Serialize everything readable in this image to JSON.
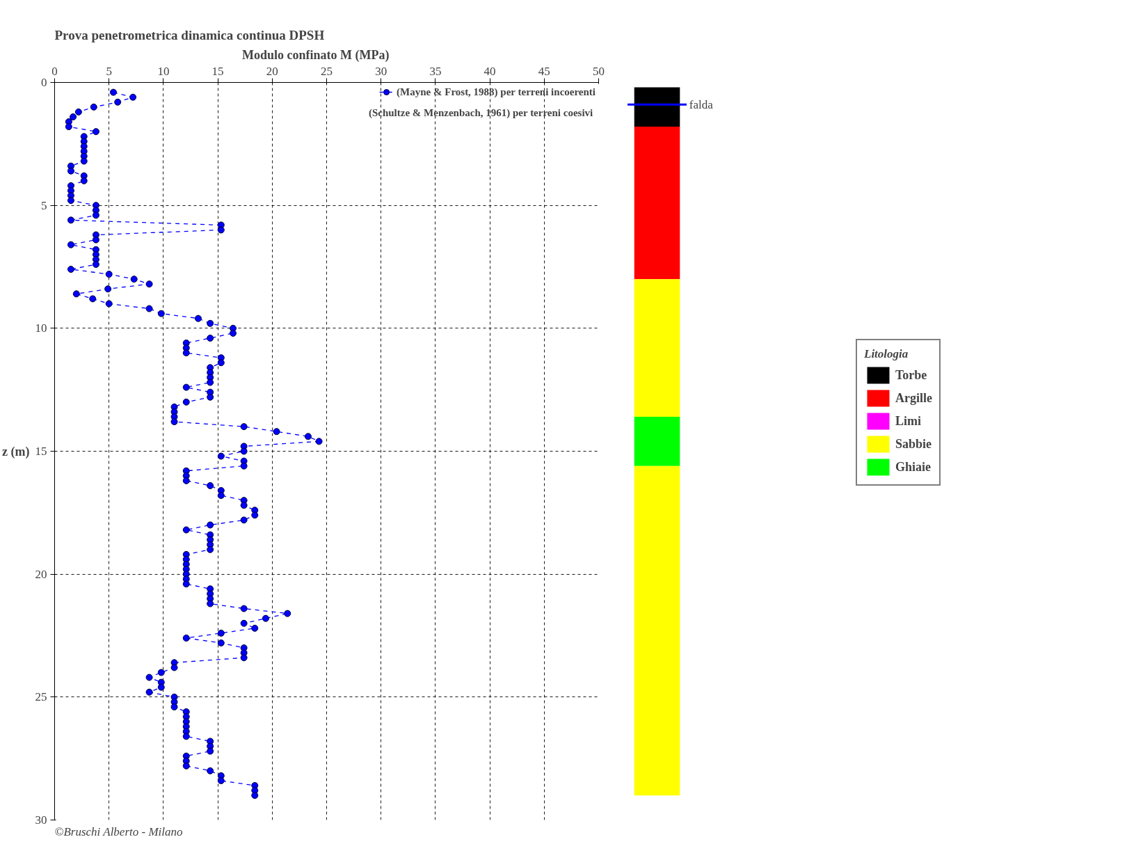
{
  "chart_data": [
    {
      "type": "line",
      "title": "Prova penetrometrica dinamica continua  DPSH",
      "xlabel": "Modulo confinato        M (MPa)",
      "ylabel": "z (m)",
      "xlim": [
        0,
        50
      ],
      "xticks": [
        0,
        5,
        10,
        15,
        20,
        25,
        30,
        35,
        40,
        45,
        50
      ],
      "ylim": [
        30,
        0
      ],
      "yticks": [
        0,
        5,
        10,
        15,
        20,
        25,
        30
      ],
      "grid": true,
      "legend": "top right",
      "marker": "circle",
      "line_style": "dashed",
      "series": [
        {
          "name": "(Mayne & Frost, 1988) per terreni incoerenti",
          "color": "#0000ff",
          "x": [
            5.4,
            7.2,
            5.8,
            3.6,
            2.2,
            1.7,
            1.3,
            1.3,
            3.8,
            2.7,
            2.7,
            2.7,
            2.7,
            2.7,
            2.7,
            1.5,
            1.5,
            2.7,
            2.7,
            1.5,
            1.5,
            1.5,
            1.5,
            3.8,
            3.8,
            3.8,
            1.5,
            15.3,
            15.3,
            3.8,
            3.8,
            1.5,
            3.8,
            3.8,
            3.8,
            3.8,
            1.5,
            5.0,
            7.3,
            8.7,
            4.9,
            2.0,
            3.5,
            5.0,
            8.7,
            9.8,
            13.2,
            14.3,
            16.4,
            16.4,
            14.3,
            12.1,
            12.1,
            12.1,
            15.3,
            15.3,
            14.3,
            14.3,
            14.3,
            14.3,
            12.1,
            14.3,
            14.3,
            12.1,
            11.0,
            11.0,
            11.0,
            11.0,
            17.4,
            20.4,
            23.3,
            24.3,
            17.4,
            17.4,
            15.3,
            17.4,
            17.4,
            12.1,
            12.1,
            12.1,
            14.3,
            15.3,
            15.3,
            17.4,
            17.4,
            18.4,
            18.4,
            17.4,
            14.3,
            12.1,
            14.3,
            14.3,
            14.3,
            14.3,
            12.1,
            12.1,
            12.1,
            12.1,
            12.1,
            12.1,
            12.1,
            14.3,
            14.3,
            14.3,
            14.3,
            17.4,
            21.4,
            19.4,
            17.4,
            18.4,
            15.3,
            12.1,
            15.3,
            17.4,
            17.4,
            17.4,
            11.0,
            11.0,
            9.8,
            8.7,
            9.8,
            9.8,
            8.7,
            11.0,
            11.0,
            11.0,
            12.1,
            12.1,
            12.1,
            12.1,
            12.1,
            12.1,
            14.3,
            14.3,
            14.3,
            12.1,
            12.1,
            12.1,
            14.3,
            15.3,
            15.3,
            18.4,
            18.4,
            18.4
          ],
          "values": [
            0.4,
            0.6,
            0.8,
            1.0,
            1.2,
            1.4,
            1.6,
            1.8,
            2.0,
            2.2,
            2.4,
            2.6,
            2.8,
            3.0,
            3.2,
            3.4,
            3.6,
            3.8,
            4.0,
            4.2,
            4.4,
            4.6,
            4.8,
            5.0,
            5.2,
            5.4,
            5.6,
            5.8,
            6.0,
            6.2,
            6.4,
            6.6,
            6.8,
            7.0,
            7.2,
            7.4,
            7.6,
            7.8,
            8.0,
            8.2,
            8.4,
            8.6,
            8.8,
            9.0,
            9.2,
            9.4,
            9.6,
            9.8,
            10.0,
            10.2,
            10.4,
            10.6,
            10.8,
            11.0,
            11.2,
            11.4,
            11.6,
            11.8,
            12.0,
            12.2,
            12.4,
            12.6,
            12.8,
            13.0,
            13.2,
            13.4,
            13.6,
            13.8,
            14.0,
            14.2,
            14.4,
            14.6,
            14.8,
            15.0,
            15.2,
            15.4,
            15.6,
            15.8,
            16.0,
            16.2,
            16.4,
            16.6,
            16.8,
            17.0,
            17.2,
            17.4,
            17.6,
            17.8,
            18.0,
            18.2,
            18.4,
            18.6,
            18.8,
            19.0,
            19.2,
            19.4,
            19.6,
            19.8,
            20.0,
            20.2,
            20.4,
            20.6,
            20.8,
            21.0,
            21.2,
            21.4,
            21.6,
            21.8,
            22.0,
            22.2,
            22.4,
            22.6,
            22.8,
            23.0,
            23.2,
            23.4,
            23.6,
            23.8,
            24.0,
            24.2,
            24.4,
            24.6,
            24.8,
            25.0,
            25.2,
            25.4,
            25.6,
            25.8,
            26.0,
            26.2,
            26.4,
            26.6,
            26.8,
            27.0,
            27.2,
            27.4,
            27.6,
            27.8,
            28.0,
            28.2,
            28.4,
            28.6,
            28.8,
            29.0
          ]
        }
      ],
      "annotations": [
        "(Schultze & Menzenbach, 1961) per terreni coesivi",
        "©Bruschi Alberto - Milano"
      ]
    },
    {
      "type": "bar",
      "categories": [
        null
      ],
      "ylim": [
        30,
        0
      ],
      "tick_labels": false,
      "legend": "right",
      "legend_title": "Litologia",
      "series": [
        {
          "name": "Torbe",
          "color": "#000000",
          "base": [
            0.2
          ],
          "values": [
            1.6
          ]
        },
        {
          "name": "Argille",
          "color": "#ff0000",
          "base": [
            1.8
          ],
          "values": [
            6.2
          ]
        },
        {
          "name": "Limi",
          "color": "#ff00ff",
          "base": [
            null
          ],
          "values": [
            null
          ]
        },
        {
          "name": "Sabbie",
          "color": "#ffff00",
          "base": [
            8.0
          ],
          "values": [
            5.6
          ]
        },
        {
          "name": "Ghiaie",
          "color": "#00ff00",
          "base": [
            13.6
          ],
          "values": [
            2.0
          ]
        },
        {
          "color": "#ffff00",
          "base": [
            15.6
          ],
          "values": [
            13.4
          ]
        }
      ],
      "ref_lines": [
        {
          "axis": "y",
          "value": 0.9,
          "label": "falda",
          "color": "#0000ff"
        }
      ]
    }
  ]
}
